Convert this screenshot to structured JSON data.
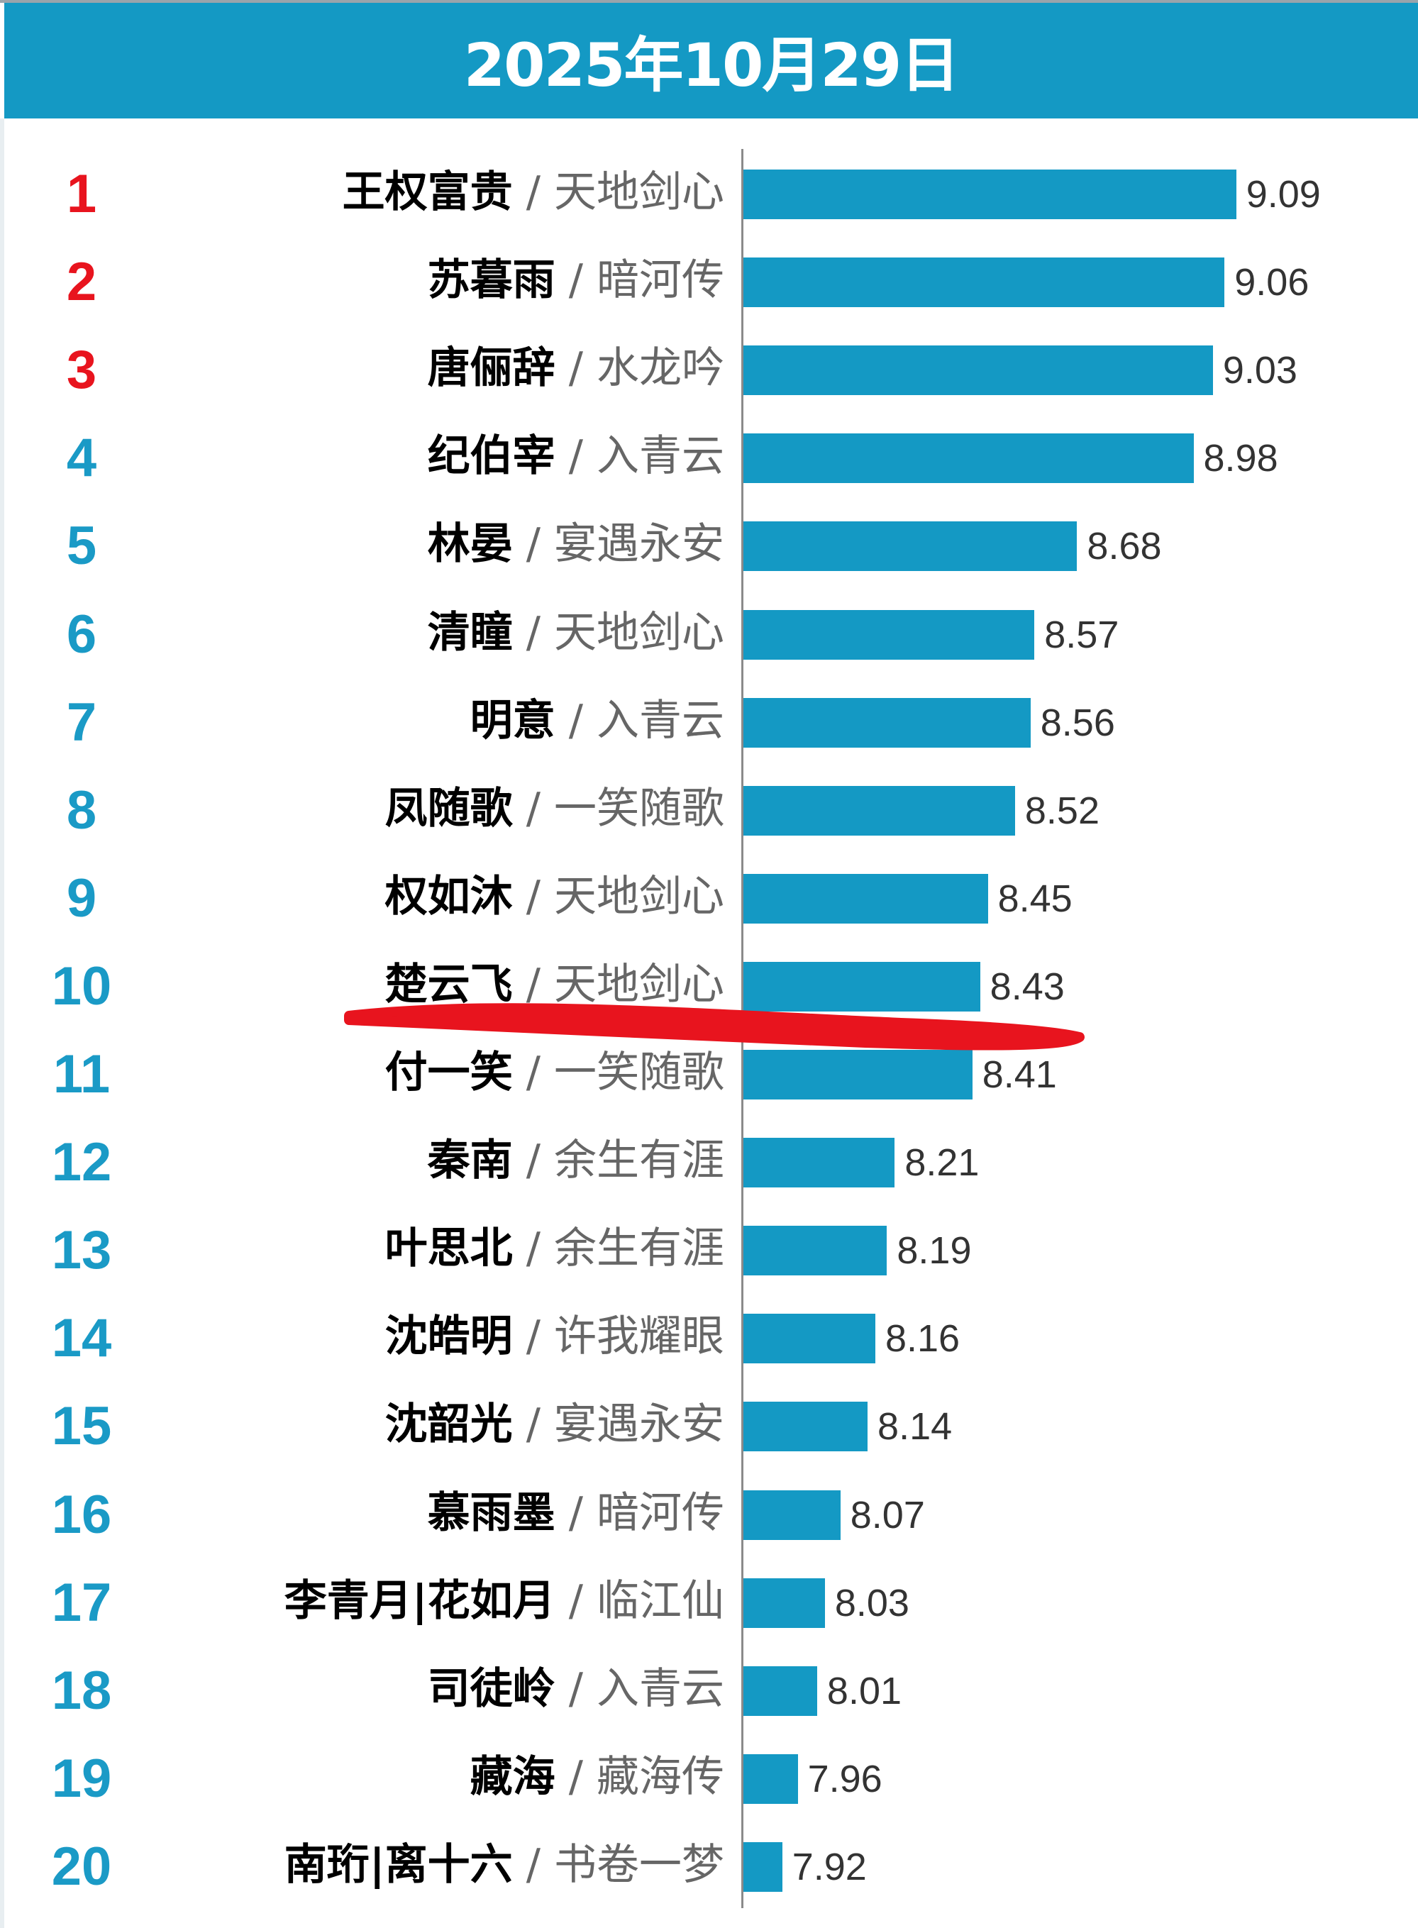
{
  "header": {
    "title": "2025年10月29日"
  },
  "colors": {
    "bar": "#1499c4",
    "header": "#1499c4",
    "top_rank": "#e8141e",
    "rank": "#1a9ac6",
    "annotation": "#e8141e"
  },
  "chart_data": {
    "type": "bar",
    "orientation": "horizontal",
    "title": "2025年10月29日",
    "xlim": [
      7.82,
      9.09
    ],
    "grid": false,
    "annotation": "hand-drawn red line under rank 10",
    "rows": [
      {
        "rank": "1",
        "name": "王权富贵",
        "drama": "天地剑心",
        "value": 9.09
      },
      {
        "rank": "2",
        "name": "苏暮雨",
        "drama": "暗河传",
        "value": 9.06
      },
      {
        "rank": "3",
        "name": "唐俪辞",
        "drama": "水龙吟",
        "value": 9.03
      },
      {
        "rank": "4",
        "name": "纪伯宰",
        "drama": "入青云",
        "value": 8.98
      },
      {
        "rank": "5",
        "name": "林晏",
        "drama": "宴遇永安",
        "value": 8.68
      },
      {
        "rank": "6",
        "name": "清瞳",
        "drama": "天地剑心",
        "value": 8.57
      },
      {
        "rank": "7",
        "name": "明意",
        "drama": "入青云",
        "value": 8.56
      },
      {
        "rank": "8",
        "name": "凤随歌",
        "drama": "一笑随歌",
        "value": 8.52
      },
      {
        "rank": "9",
        "name": "权如沐",
        "drama": "天地剑心",
        "value": 8.45
      },
      {
        "rank": "10",
        "name": "楚云飞",
        "drama": "天地剑心",
        "value": 8.43
      },
      {
        "rank": "11",
        "name": "付一笑",
        "drama": "一笑随歌",
        "value": 8.41
      },
      {
        "rank": "12",
        "name": "秦南",
        "drama": "余生有涯",
        "value": 8.21
      },
      {
        "rank": "13",
        "name": "叶思北",
        "drama": "余生有涯",
        "value": 8.19
      },
      {
        "rank": "14",
        "name": "沈皓明",
        "drama": "许我耀眼",
        "value": 8.16
      },
      {
        "rank": "15",
        "name": "沈韶光",
        "drama": "宴遇永安",
        "value": 8.14
      },
      {
        "rank": "16",
        "name": "慕雨墨",
        "drama": "暗河传",
        "value": 8.07
      },
      {
        "rank": "17",
        "name": "李青月|花如月",
        "drama": "临江仙",
        "value": 8.03
      },
      {
        "rank": "18",
        "name": "司徒岭",
        "drama": "入青云",
        "value": 8.01
      },
      {
        "rank": "19",
        "name": "藏海",
        "drama": "藏海传",
        "value": 7.96
      },
      {
        "rank": "20",
        "name": "南珩|离十六",
        "drama": "书卷一梦",
        "value": 7.92
      }
    ]
  }
}
